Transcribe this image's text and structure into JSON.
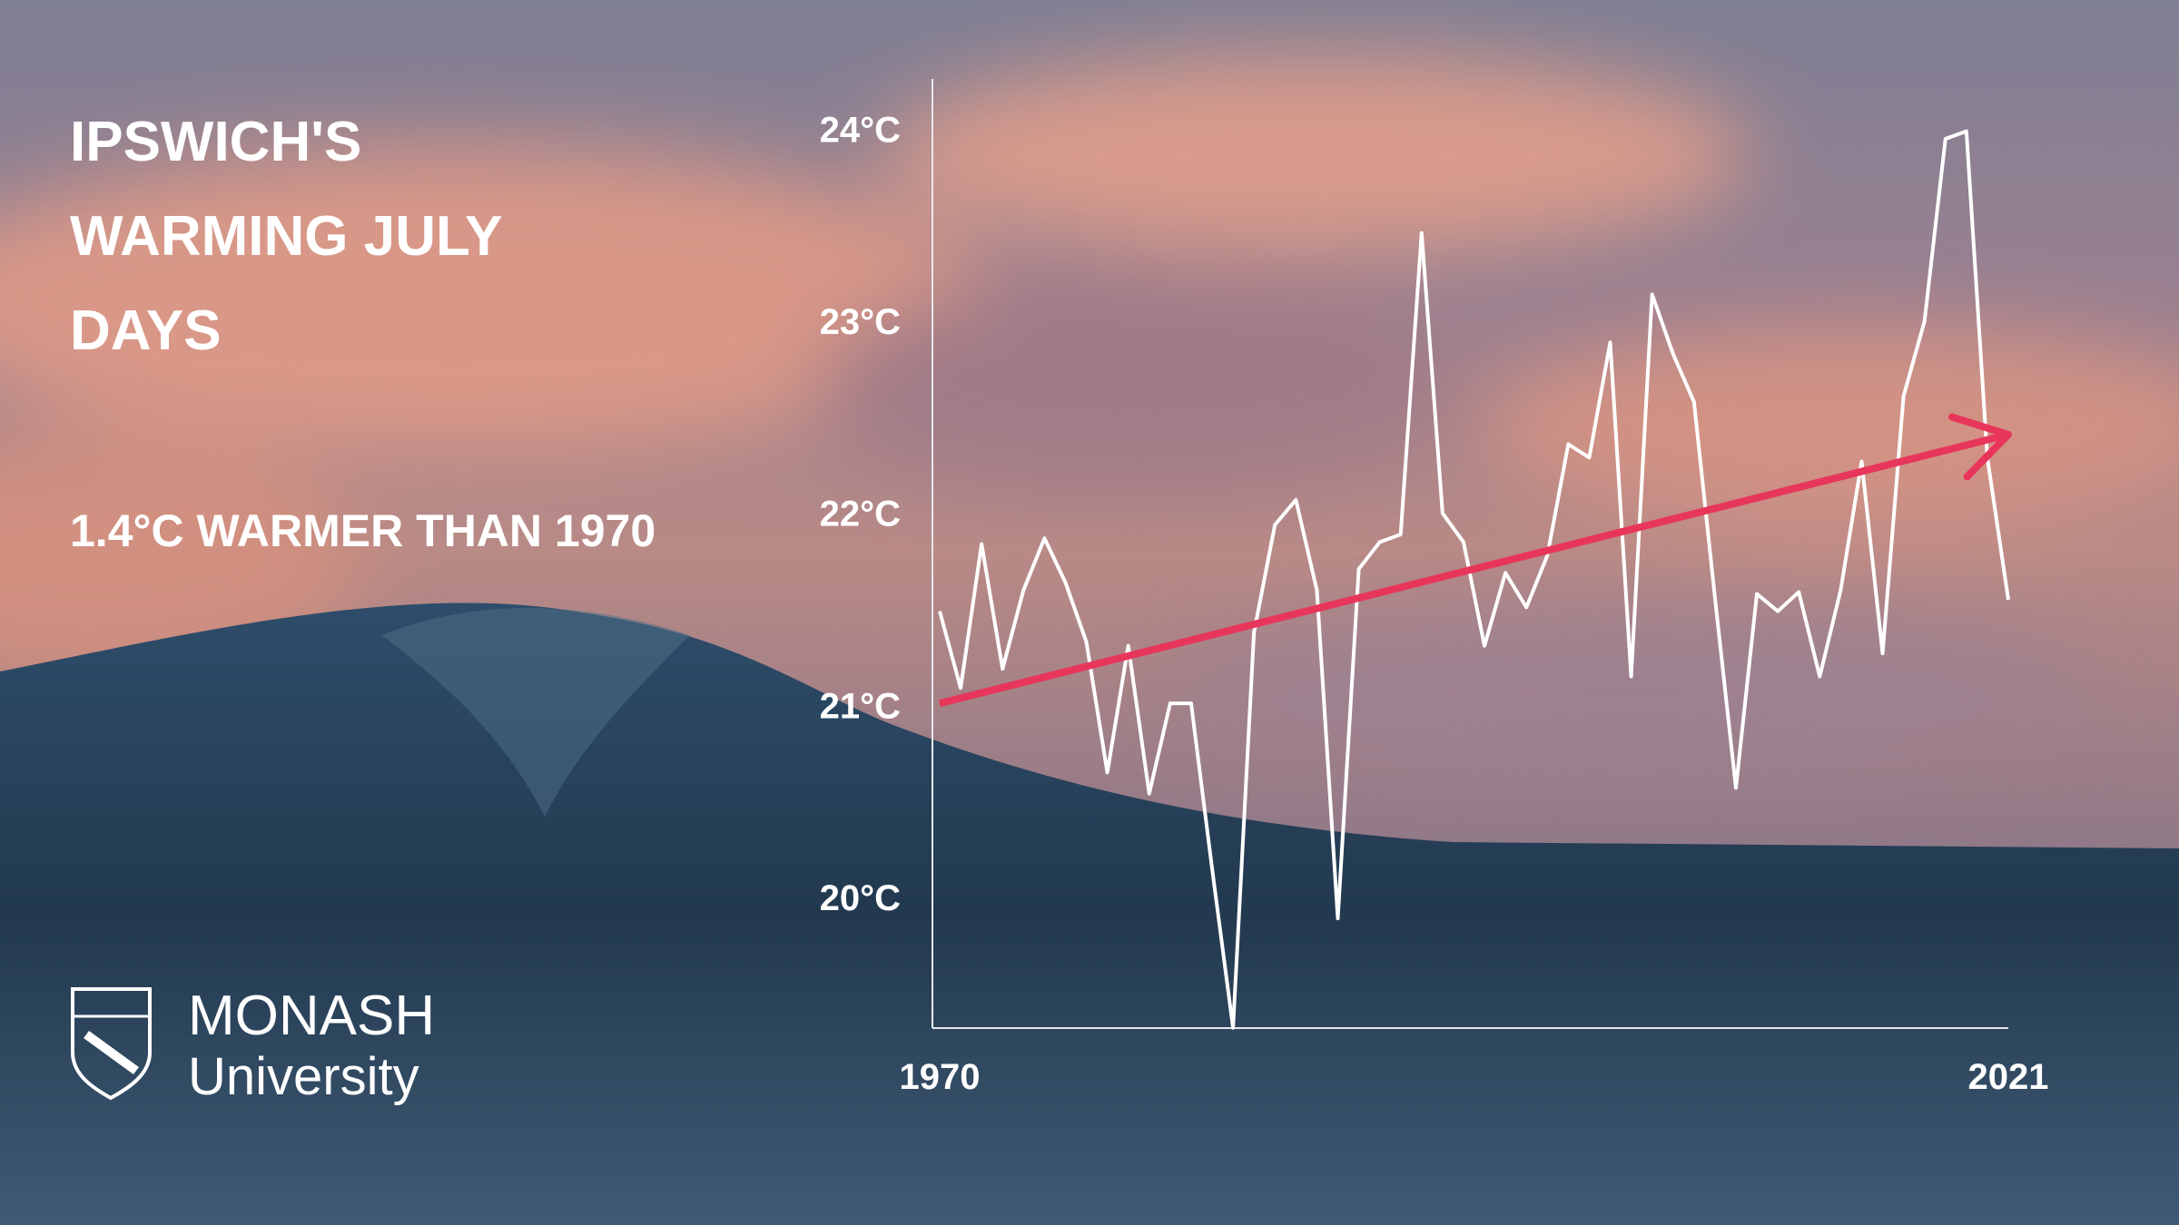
{
  "chart_data": {
    "type": "line",
    "title": "IPSWICH'S WARMING JULY DAYS",
    "subtitle": "1.4°C WARMER THAN 1970",
    "x": [
      1970,
      1971,
      1972,
      1973,
      1974,
      1975,
      1976,
      1977,
      1978,
      1979,
      1980,
      1981,
      1982,
      1983,
      1984,
      1985,
      1986,
      1987,
      1988,
      1989,
      1990,
      1991,
      1992,
      1993,
      1994,
      1995,
      1996,
      1997,
      1998,
      1999,
      2000,
      2001,
      2002,
      2003,
      2004,
      2005,
      2006,
      2007,
      2008,
      2009,
      2010,
      2011,
      2012,
      2013,
      2014,
      2015,
      2016,
      2017,
      2018,
      2019,
      2020,
      2021
    ],
    "series": [
      {
        "color": "#ffffff",
        "values": [
          21.49,
          21.09,
          21.84,
          21.19,
          21.6,
          21.87,
          21.64,
          21.33,
          20.65,
          21.31,
          20.54,
          21.01,
          21.01,
          20.15,
          19.32,
          21.38,
          21.94,
          22.07,
          21.6,
          19.89,
          21.71,
          21.85,
          21.89,
          23.46,
          22.0,
          21.85,
          21.31,
          21.69,
          21.51,
          21.78,
          22.36,
          22.29,
          22.89,
          21.15,
          23.14,
          22.83,
          22.58,
          21.56,
          20.57,
          21.58,
          21.49,
          21.59,
          21.15,
          21.6,
          22.27,
          21.27,
          22.61,
          23.0,
          23.95,
          23.99,
          22.29,
          21.55
        ]
      }
    ],
    "trend": {
      "color": "#e8365a",
      "x": [
        1970,
        2021
      ],
      "values": [
        21.01,
        22.41
      ]
    },
    "xlim": [
      1970,
      2021
    ],
    "xticks": [
      1970,
      2021
    ],
    "ylim": [
      19.3,
      24.3
    ],
    "yticks": [
      {
        "value": 20,
        "label": "20°C"
      },
      {
        "value": 21,
        "label": "21°C"
      },
      {
        "value": 22,
        "label": "22°C"
      },
      {
        "value": 23,
        "label": "23°C"
      },
      {
        "value": 24,
        "label": "24°C"
      }
    ],
    "grid": false
  },
  "logo": {
    "name": "MONASH",
    "subname": "University"
  }
}
